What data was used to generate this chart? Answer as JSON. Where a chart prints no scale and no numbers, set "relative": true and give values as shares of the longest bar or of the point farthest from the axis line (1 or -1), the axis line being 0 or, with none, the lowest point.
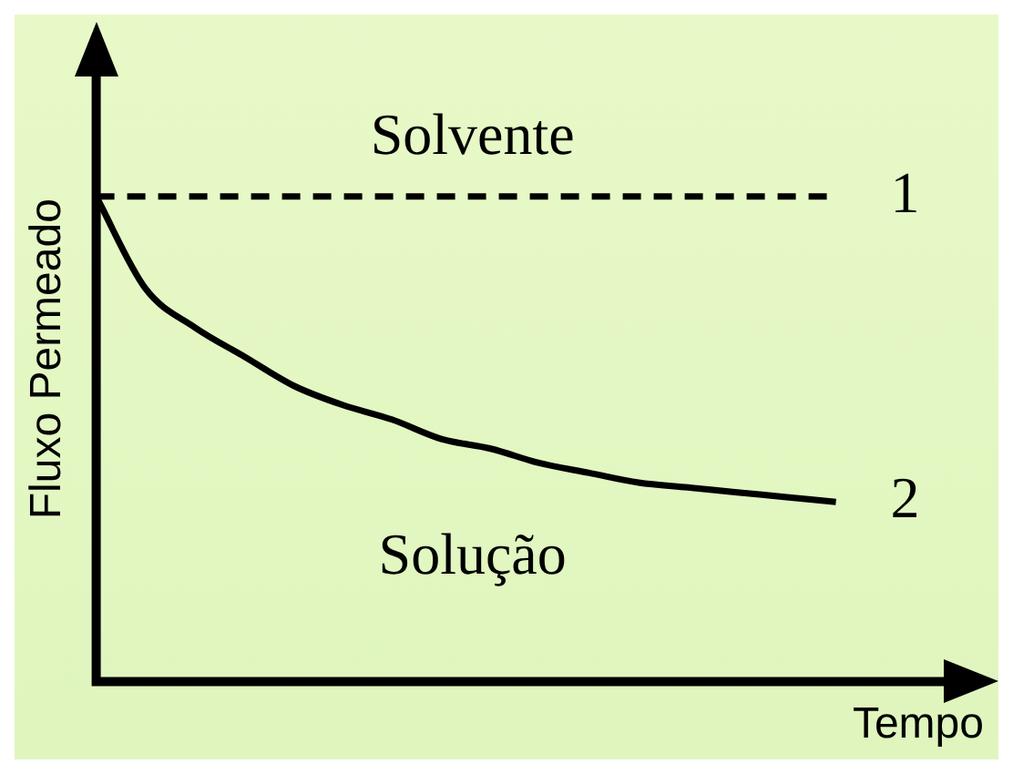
{
  "chart_data": {
    "type": "line",
    "relative": true,
    "xlabel": "Tempo",
    "ylabel": "Fluxo Permeado",
    "categories": [
      null,
      null,
      null,
      null,
      null,
      null,
      null,
      null,
      null,
      null,
      null,
      null,
      null,
      null,
      null,
      null
    ],
    "series": [
      {
        "name": "1",
        "color": "#000000",
        "line_style": "dashed",
        "values": [
          1,
          1,
          1,
          1,
          1,
          1,
          1,
          1,
          1,
          1,
          1,
          1,
          1,
          1,
          1,
          1
        ]
      },
      {
        "name": "2",
        "color": "#000000",
        "line_style": "solid",
        "values": [
          1,
          0.81,
          0.73,
          0.67,
          0.61,
          0.57,
          0.54,
          0.5,
          0.48,
          0.45,
          0.43,
          0.41,
          0.4,
          0.39,
          0.38,
          0.37
        ]
      }
    ],
    "annotations": [
      "Solvente",
      "Solução"
    ],
    "marker": "none",
    "grid": false,
    "legend": false
  }
}
